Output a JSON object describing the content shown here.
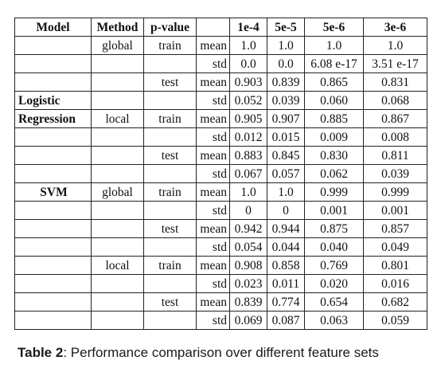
{
  "table": {
    "headers": [
      "Model",
      "Method",
      "p-value",
      "",
      "1e-4",
      "5e-5",
      "5e-6",
      "3e-6"
    ],
    "rows": [
      {
        "model": "",
        "method": "global",
        "pvalue": "train",
        "stat": "mean",
        "values": [
          "1.0",
          "1.0",
          "1.0",
          "1.0"
        ]
      },
      {
        "model": "",
        "method": "",
        "pvalue": "",
        "stat": "std",
        "values": [
          "0.0",
          "0.0",
          "6.08 e-17",
          "3.51 e-17"
        ]
      },
      {
        "model": "",
        "method": "",
        "pvalue": "test",
        "stat": "mean",
        "values": [
          "0.903",
          "0.839",
          "0.865",
          "0.831"
        ]
      },
      {
        "model": "Logistic",
        "method": "",
        "pvalue": "",
        "stat": "std",
        "values": [
          "0.052",
          "0.039",
          "0.060",
          "0.068"
        ]
      },
      {
        "model": "Regression",
        "method": "local",
        "pvalue": "train",
        "stat": "mean",
        "values": [
          "0.905",
          "0.907",
          "0.885",
          "0.867"
        ]
      },
      {
        "model": "",
        "method": "",
        "pvalue": "",
        "stat": "std",
        "values": [
          "0.012",
          "0.015",
          "0.009",
          "0.008"
        ]
      },
      {
        "model": "",
        "method": "",
        "pvalue": "test",
        "stat": "mean",
        "values": [
          "0.883",
          "0.845",
          "0.830",
          "0.811"
        ]
      },
      {
        "model": "",
        "method": "",
        "pvalue": "",
        "stat": "std",
        "values": [
          "0.067",
          "0.057",
          "0.062",
          "0.039"
        ]
      },
      {
        "model": "SVM",
        "method": "global",
        "pvalue": "train",
        "stat": "mean",
        "values": [
          "1.0",
          "1.0",
          "0.999",
          "0.999"
        ]
      },
      {
        "model": "",
        "method": "",
        "pvalue": "",
        "stat": "std",
        "values": [
          "0",
          "0",
          "0.001",
          "0.001"
        ]
      },
      {
        "model": "",
        "method": "",
        "pvalue": "test",
        "stat": "mean",
        "values": [
          "0.942",
          "0.944",
          "0.875",
          "0.857"
        ]
      },
      {
        "model": "",
        "method": "",
        "pvalue": "",
        "stat": "std",
        "values": [
          "0.054",
          "0.044",
          "0.040",
          "0.049"
        ]
      },
      {
        "model": "",
        "method": "local",
        "pvalue": "train",
        "stat": "mean",
        "values": [
          "0.908",
          "0.858",
          "0.769",
          "0.801"
        ]
      },
      {
        "model": "",
        "method": "",
        "pvalue": "",
        "stat": "std",
        "values": [
          "0.023",
          "0.011",
          "0.020",
          "0.016"
        ]
      },
      {
        "model": "",
        "method": "",
        "pvalue": "test",
        "stat": "mean",
        "values": [
          "0.839",
          "0.774",
          "0.654",
          "0.682"
        ]
      },
      {
        "model": "",
        "method": "",
        "pvalue": "",
        "stat": "std",
        "values": [
          "0.069",
          "0.087",
          "0.063",
          "0.059"
        ]
      }
    ]
  },
  "caption": {
    "label": "Table 2",
    "text": ": Performance comparison over different feature sets"
  }
}
